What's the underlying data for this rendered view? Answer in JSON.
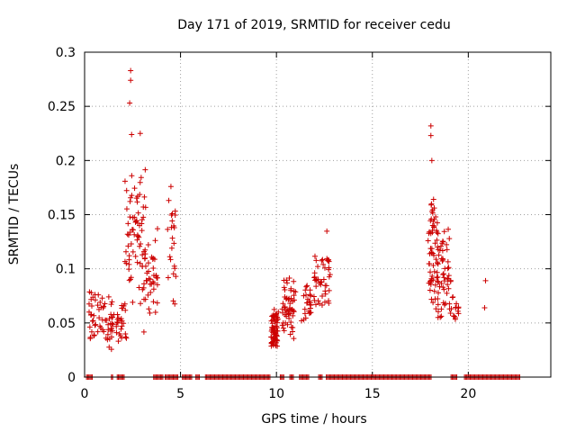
{
  "chart_data": {
    "type": "scatter",
    "title": "Day 171 of 2019, SRMTID for receiver cedu",
    "xlabel": "GPS time / hours",
    "ylabel": "SRMTID / TECUs",
    "xlim": [
      0,
      24.3
    ],
    "ylim": [
      0,
      0.3
    ],
    "xticks": [
      0,
      5,
      10,
      15,
      20
    ],
    "xtick_labels": [
      "0",
      "5",
      "10",
      "15",
      "20"
    ],
    "yticks": [
      0,
      0.05,
      0.1,
      0.15,
      0.2,
      0.25,
      0.3
    ],
    "ytick_labels": [
      "0",
      "0.05",
      "0.1",
      "0.15",
      "0.2",
      "0.25",
      "0.3"
    ],
    "grid": true,
    "marker": "+",
    "series_color": "#cc0000",
    "series": [
      {
        "name": "SRMTID",
        "clusters": [
          {
            "x_range": [
              0.2,
              1.4
            ],
            "y_range": [
              0.02,
              0.085
            ],
            "count": 55
          },
          {
            "x_range": [
              1.4,
              2.2
            ],
            "y_range": [
              0.025,
              0.075
            ],
            "count": 35
          },
          {
            "x_range": [
              2.1,
              3.2
            ],
            "y_range": [
              0.06,
              0.21
            ],
            "count": 70
          },
          {
            "x_range": [
              3.0,
              3.8
            ],
            "y_range": [
              0.04,
              0.14
            ],
            "count": 40
          },
          {
            "x_range": [
              4.3,
              4.8
            ],
            "y_range": [
              0.06,
              0.175
            ],
            "count": 22
          },
          {
            "x_range": [
              9.7,
              10.1
            ],
            "y_range": [
              0.025,
              0.065
            ],
            "count": 70
          },
          {
            "x_range": [
              10.3,
              11.0
            ],
            "y_range": [
              0.03,
              0.095
            ],
            "count": 55
          },
          {
            "x_range": [
              11.3,
              11.8
            ],
            "y_range": [
              0.04,
              0.095
            ],
            "count": 25
          },
          {
            "x_range": [
              11.9,
              12.8
            ],
            "y_range": [
              0.045,
              0.145
            ],
            "count": 45
          },
          {
            "x_range": [
              17.9,
              18.4
            ],
            "y_range": [
              0.06,
              0.18
            ],
            "count": 60
          },
          {
            "x_range": [
              18.4,
              19.1
            ],
            "y_range": [
              0.045,
              0.15
            ],
            "count": 55
          },
          {
            "x_range": [
              19.1,
              19.5
            ],
            "y_range": [
              0.05,
              0.075
            ],
            "count": 14
          }
        ],
        "extra_points": [
          [
            2.4,
            0.283
          ],
          [
            2.4,
            0.274
          ],
          [
            2.35,
            0.253
          ],
          [
            2.45,
            0.224
          ],
          [
            2.9,
            0.225
          ],
          [
            18.05,
            0.232
          ],
          [
            18.05,
            0.223
          ],
          [
            18.1,
            0.2
          ],
          [
            20.9,
            0.089
          ],
          [
            20.85,
            0.064
          ],
          [
            3.8,
            0.137
          ],
          [
            4.5,
            0.176
          ]
        ],
        "zero_segments": [
          [
            0.1,
            0.4
          ],
          [
            1.4,
            1.5
          ],
          [
            1.7,
            2.1
          ],
          [
            3.6,
            4.1
          ],
          [
            4.2,
            4.9
          ],
          [
            5.1,
            5.6
          ],
          [
            5.8,
            6.0
          ],
          [
            6.3,
            9.7
          ],
          [
            10.2,
            10.4
          ],
          [
            10.7,
            10.9
          ],
          [
            11.2,
            11.7
          ],
          [
            12.2,
            12.4
          ],
          [
            12.6,
            18.1
          ],
          [
            19.1,
            19.4
          ],
          [
            19.8,
            22.7
          ]
        ]
      }
    ]
  }
}
